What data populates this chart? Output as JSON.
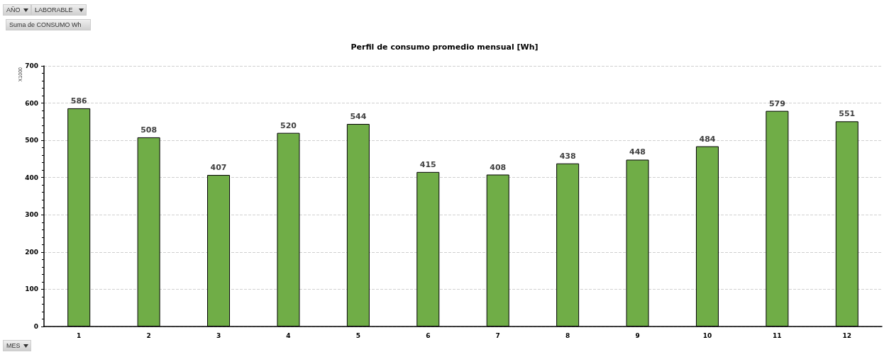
{
  "chart_data": {
    "type": "bar",
    "title": "Perfil de consumo promedio mensual [Wh]",
    "ylabel": "X1000",
    "categories": [
      "1",
      "2",
      "3",
      "4",
      "5",
      "6",
      "7",
      "8",
      "9",
      "10",
      "11",
      "12"
    ],
    "values": [
      586,
      508,
      407,
      520,
      544,
      415,
      408,
      438,
      448,
      484,
      579,
      551
    ],
    "color": "#70ad47",
    "ylim": [
      0,
      700
    ],
    "yticks": [
      0,
      100,
      200,
      300,
      400,
      500,
      600,
      700
    ],
    "grid": "y",
    "data_labels": true,
    "annotations": [
      "AÑO",
      "LABORABLE",
      "Suma de CONSUMO Wh",
      "MES"
    ]
  }
}
